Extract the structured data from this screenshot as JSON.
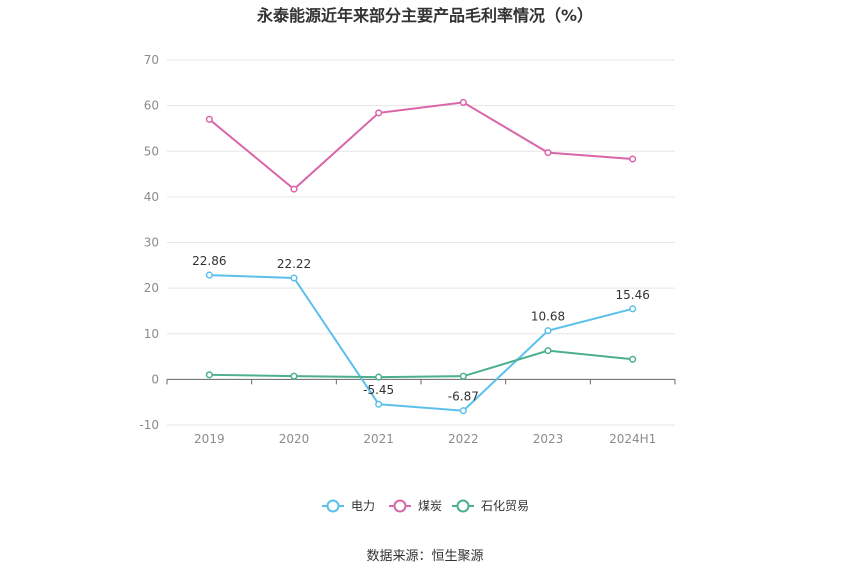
{
  "chart_data": {
    "type": "line",
    "title": "永泰能源近年来部分主要产品毛利率情况（%）",
    "categories": [
      "2019",
      "2020",
      "2021",
      "2022",
      "2023",
      "2024H1"
    ],
    "ylim": [
      -10,
      70
    ],
    "yticks": [
      -10,
      0,
      10,
      20,
      30,
      40,
      50,
      60,
      70
    ],
    "grid": true,
    "legend_position": "bottom",
    "series": [
      {
        "name": "电力",
        "color": "#5bc0eb",
        "values": [
          22.86,
          22.22,
          -5.45,
          -6.87,
          10.68,
          15.46
        ],
        "labels": [
          "22.86",
          "22.22",
          "-5.45",
          "-6.87",
          "10.68",
          "15.46"
        ]
      },
      {
        "name": "煤炭",
        "color": "#d866a8",
        "values": [
          57.0,
          41.7,
          58.4,
          60.7,
          49.7,
          48.3
        ]
      },
      {
        "name": "石化贸易",
        "color": "#4caf8e",
        "values": [
          1.0,
          0.7,
          0.5,
          0.7,
          6.3,
          4.4
        ]
      }
    ]
  },
  "source": "数据来源：恒生聚源"
}
